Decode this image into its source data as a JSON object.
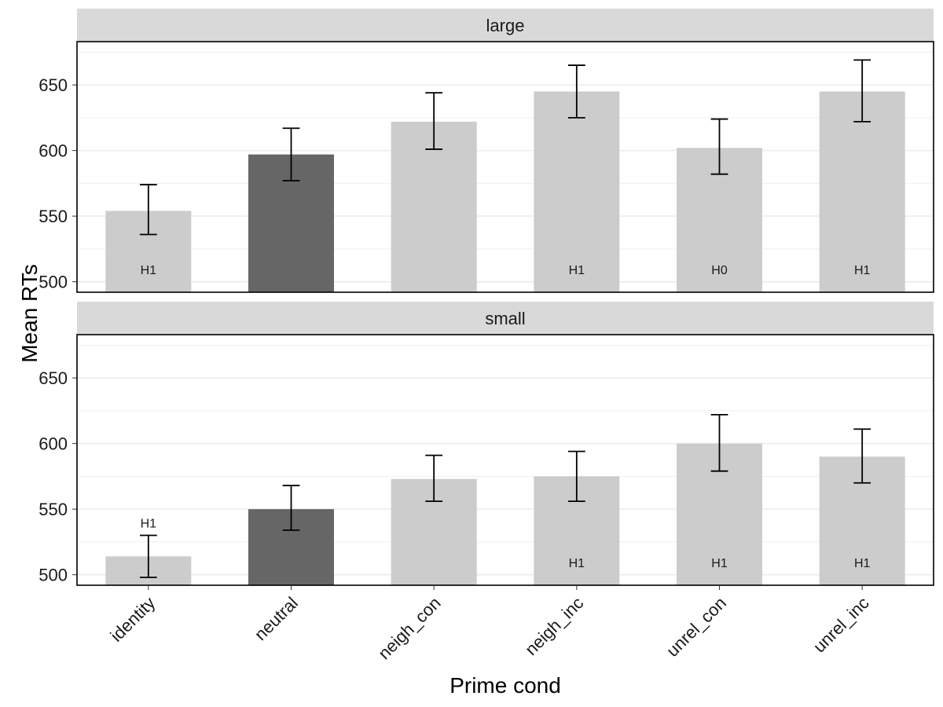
{
  "chart_data": {
    "type": "bar",
    "xlabel": "Prime cond",
    "ylabel": "Mean RTs",
    "categories": [
      "identity",
      "neutral",
      "neigh_con",
      "neigh_inc",
      "unrel_con",
      "unrel_inc"
    ],
    "ylim": [
      492,
      683
    ],
    "y_ticks": [
      500,
      550,
      600,
      650
    ],
    "grid": true,
    "colors": {
      "baseline": "#666666",
      "other": "#cccccc",
      "strip": "#d9d9d9",
      "grid": "#ebebeb"
    },
    "baseline_category": "neutral",
    "panels": [
      {
        "strip": "large",
        "values": [
          554,
          597,
          622,
          645,
          602,
          645
        ],
        "error_low": [
          536,
          577,
          601,
          625,
          582,
          622
        ],
        "error_high": [
          574,
          617,
          644,
          665,
          624,
          669
        ],
        "labels": [
          "H1",
          "",
          "",
          "H1",
          "H0",
          "H1"
        ],
        "label_positions": [
          "bottom",
          "bottom",
          "bottom",
          "bottom",
          "bottom",
          "bottom"
        ]
      },
      {
        "strip": "small",
        "values": [
          514,
          550,
          573,
          575,
          600,
          590
        ],
        "error_low": [
          498,
          534,
          556,
          556,
          579,
          570
        ],
        "error_high": [
          530,
          568,
          591,
          594,
          622,
          611
        ],
        "labels": [
          "H1",
          "",
          "",
          "H1",
          "H1",
          "H1"
        ],
        "label_positions": [
          "above",
          "bottom",
          "bottom",
          "bottom",
          "bottom",
          "bottom"
        ]
      }
    ]
  }
}
